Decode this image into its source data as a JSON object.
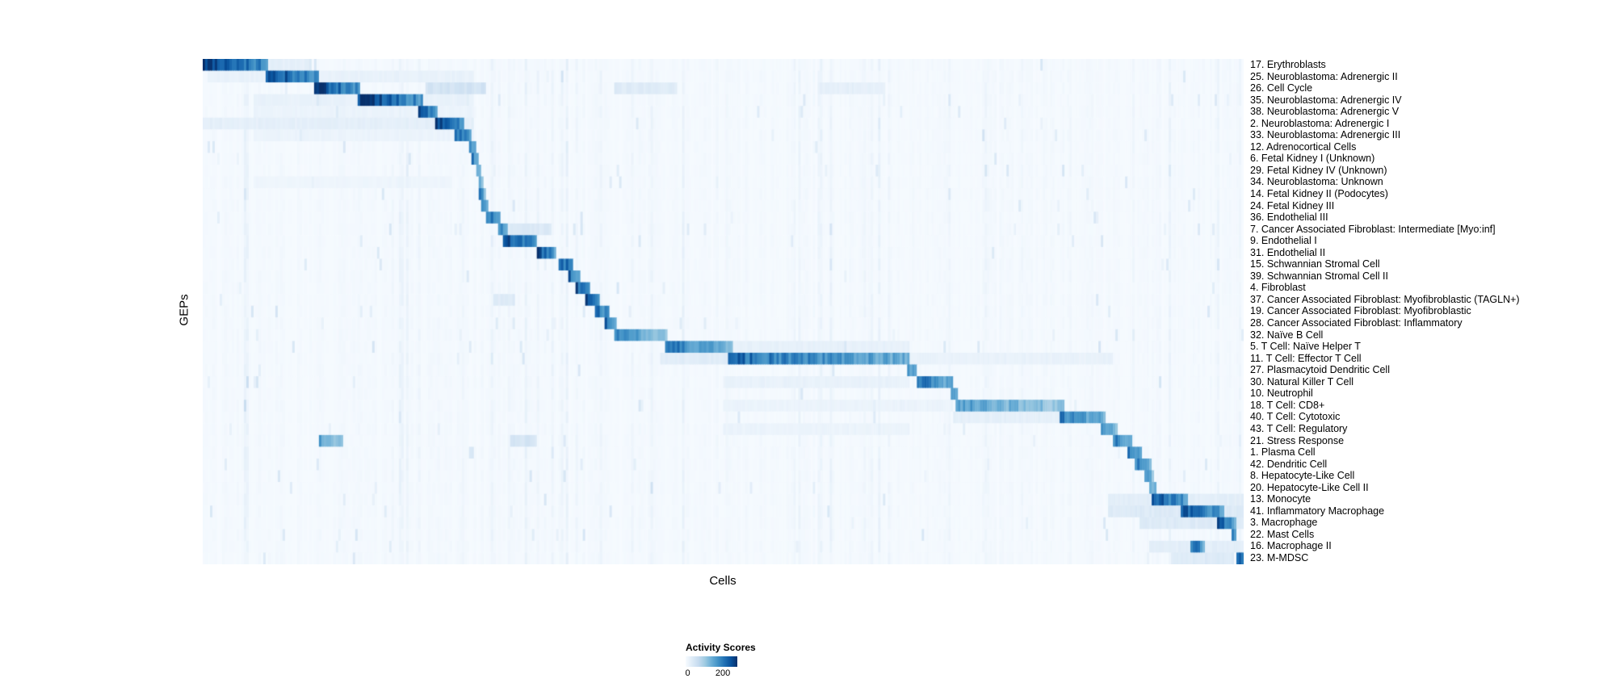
{
  "chart_data": {
    "type": "heatmap",
    "title": "",
    "xlabel": "Cells",
    "ylabel": "GEPs",
    "legend": {
      "title": "Activity Scores",
      "min_label": "0",
      "max_label": "200"
    },
    "value_range": [
      0,
      220
    ],
    "colorscale": {
      "name": "Blues",
      "stops": [
        {
          "value": 0,
          "color": "#f7fbff"
        },
        {
          "value": 27,
          "color": "#deebf7"
        },
        {
          "value": 55,
          "color": "#c6dbef"
        },
        {
          "value": 83,
          "color": "#9ecae1"
        },
        {
          "value": 110,
          "color": "#6baed6"
        },
        {
          "value": 138,
          "color": "#4292c6"
        },
        {
          "value": 165,
          "color": "#2171b5"
        },
        {
          "value": 193,
          "color": "#08519c"
        },
        {
          "value": 220,
          "color": "#08306b"
        }
      ]
    },
    "rows": [
      {
        "label": "17. Erythroblasts",
        "blocks": [
          [
            0.0,
            0.062,
            215
          ],
          [
            0.062,
            0.105,
            20
          ]
        ]
      },
      {
        "label": "25. Neuroblastoma: Adrenergic II",
        "blocks": [
          [
            0.005,
            0.26,
            16
          ],
          [
            0.06,
            0.111,
            195
          ]
        ]
      },
      {
        "label": "26. Cell Cycle",
        "blocks": [
          [
            0.107,
            0.151,
            200
          ],
          [
            0.215,
            0.272,
            40
          ],
          [
            0.395,
            0.455,
            26
          ],
          [
            0.59,
            0.655,
            20
          ]
        ]
      },
      {
        "label": "35. Neuroblastoma: Adrenergic IV",
        "blocks": [
          [
            0.05,
            0.26,
            16
          ],
          [
            0.148,
            0.211,
            205
          ]
        ]
      },
      {
        "label": "38. Neuroblastoma: Adrenergic V",
        "blocks": [
          [
            0.05,
            0.26,
            13
          ],
          [
            0.207,
            0.225,
            185
          ]
        ]
      },
      {
        "label": "2. Neuroblastoma: Adrenergic I",
        "blocks": [
          [
            0.0,
            0.26,
            20
          ],
          [
            0.224,
            0.252,
            200
          ]
        ]
      },
      {
        "label": "33. Neuroblastoma: Adrenergic III",
        "blocks": [
          [
            0.05,
            0.26,
            13
          ],
          [
            0.243,
            0.259,
            175
          ]
        ]
      },
      {
        "label": "12. Adrenocortical Cells",
        "blocks": [
          [
            0.256,
            0.262,
            165
          ]
        ]
      },
      {
        "label": "6. Fetal Kidney I (Unknown)",
        "blocks": [
          [
            0.259,
            0.265,
            155
          ]
        ]
      },
      {
        "label": "29. Fetal Kidney IV (Unknown)",
        "blocks": [
          [
            0.262,
            0.267,
            145
          ]
        ]
      },
      {
        "label": "34. Neuroblastoma: Unknown",
        "blocks": [
          [
            0.05,
            0.24,
            10
          ],
          [
            0.264,
            0.269,
            140
          ]
        ]
      },
      {
        "label": "14. Fetal Kidney II (Podocytes)",
        "blocks": [
          [
            0.266,
            0.271,
            150
          ]
        ]
      },
      {
        "label": "24. Fetal Kidney III",
        "blocks": [
          [
            0.268,
            0.274,
            155
          ]
        ]
      },
      {
        "label": "36. Endothelial III",
        "blocks": [
          [
            0.271,
            0.286,
            180
          ]
        ]
      },
      {
        "label": "7. Cancer Associated Fibroblast: Intermediate [Myo:inf]",
        "blocks": [
          [
            0.283,
            0.293,
            155
          ],
          [
            0.29,
            0.335,
            30
          ]
        ]
      },
      {
        "label": "9. Endothelial I",
        "blocks": [
          [
            0.288,
            0.322,
            200
          ]
        ]
      },
      {
        "label": "31. Endothelial II",
        "blocks": [
          [
            0.321,
            0.34,
            190
          ]
        ]
      },
      {
        "label": "15. Schwannian Stromal Cell",
        "blocks": [
          [
            0.341,
            0.356,
            195
          ]
        ]
      },
      {
        "label": "39. Schwannian Stromal Cell II",
        "blocks": [
          [
            0.351,
            0.363,
            180
          ]
        ]
      },
      {
        "label": "4. Fibroblast",
        "blocks": [
          [
            0.357,
            0.372,
            190
          ]
        ]
      },
      {
        "label": "37. Cancer Associated Fibroblast: Myofibroblastic (TAGLN+)",
        "blocks": [
          [
            0.368,
            0.382,
            195
          ],
          [
            0.28,
            0.3,
            28
          ]
        ]
      },
      {
        "label": "19. Cancer Associated Fibroblast: Myofibroblastic",
        "blocks": [
          [
            0.376,
            0.39,
            185
          ]
        ]
      },
      {
        "label": "28. Cancer Associated Fibroblast: Inflammatory",
        "blocks": [
          [
            0.386,
            0.398,
            175
          ]
        ]
      },
      {
        "label": "32. Naïve B Cell",
        "blocks": [
          [
            0.395,
            0.447,
            135
          ]
        ]
      },
      {
        "label": "5. T Cell: Naïve Helper T",
        "blocks": [
          [
            0.445,
            0.509,
            155
          ],
          [
            0.505,
            0.68,
            18
          ]
        ]
      },
      {
        "label": "11. T Cell: Effector T Cell",
        "blocks": [
          [
            0.44,
            0.51,
            25
          ],
          [
            0.505,
            0.679,
            165
          ],
          [
            0.679,
            0.875,
            16
          ]
        ]
      },
      {
        "label": "27. Plasmacytoid Dendritic Cell",
        "blocks": [
          [
            0.676,
            0.686,
            155
          ]
        ]
      },
      {
        "label": "30. Natural Killer T Cell",
        "blocks": [
          [
            0.5,
            0.68,
            16
          ],
          [
            0.685,
            0.722,
            165
          ]
        ]
      },
      {
        "label": "10. Neutrophil",
        "blocks": [
          [
            0.718,
            0.726,
            145
          ]
        ]
      },
      {
        "label": "18. T Cell: CD8+",
        "blocks": [
          [
            0.5,
            0.72,
            13
          ],
          [
            0.723,
            0.827,
            125
          ]
        ]
      },
      {
        "label": "40. T Cell: Cytotoxic",
        "blocks": [
          [
            0.72,
            0.83,
            20
          ],
          [
            0.824,
            0.867,
            155
          ]
        ]
      },
      {
        "label": "43. T Cell: Regulatory",
        "blocks": [
          [
            0.5,
            0.68,
            13
          ],
          [
            0.862,
            0.879,
            145
          ]
        ]
      },
      {
        "label": "21. Stress Response",
        "blocks": [
          [
            0.112,
            0.136,
            115
          ],
          [
            0.296,
            0.322,
            38
          ],
          [
            0.875,
            0.893,
            155
          ]
        ]
      },
      {
        "label": "1. Plasma Cell",
        "blocks": [
          [
            0.889,
            0.902,
            155
          ]
        ]
      },
      {
        "label": "42. Dendritic Cell",
        "blocks": [
          [
            0.895,
            0.912,
            150
          ]
        ]
      },
      {
        "label": "8. Hepatocyte-Like Cell",
        "blocks": [
          [
            0.905,
            0.913,
            135
          ]
        ]
      },
      {
        "label": "20. Hepatocyte-Like Cell II",
        "blocks": [
          [
            0.909,
            0.917,
            135
          ]
        ]
      },
      {
        "label": "13. Monocyte",
        "blocks": [
          [
            0.87,
            1.0,
            22
          ],
          [
            0.911,
            0.947,
            190
          ]
        ]
      },
      {
        "label": "41. Inflammatory Macrophage",
        "blocks": [
          [
            0.87,
            1.0,
            28
          ],
          [
            0.939,
            0.982,
            180
          ]
        ]
      },
      {
        "label": "3. Macrophage",
        "blocks": [
          [
            0.9,
            1.0,
            28
          ],
          [
            0.975,
            0.992,
            185
          ]
        ]
      },
      {
        "label": "22. Mast Cells",
        "blocks": [
          [
            0.988,
            0.994,
            165
          ]
        ]
      },
      {
        "label": "16. Macrophage II",
        "blocks": [
          [
            0.91,
            1.0,
            22
          ],
          [
            0.948,
            0.962,
            175
          ]
        ]
      },
      {
        "label": "23. M-MDSC",
        "blocks": [
          [
            0.93,
            0.99,
            28
          ],
          [
            0.992,
            1.0,
            195
          ]
        ]
      }
    ]
  }
}
